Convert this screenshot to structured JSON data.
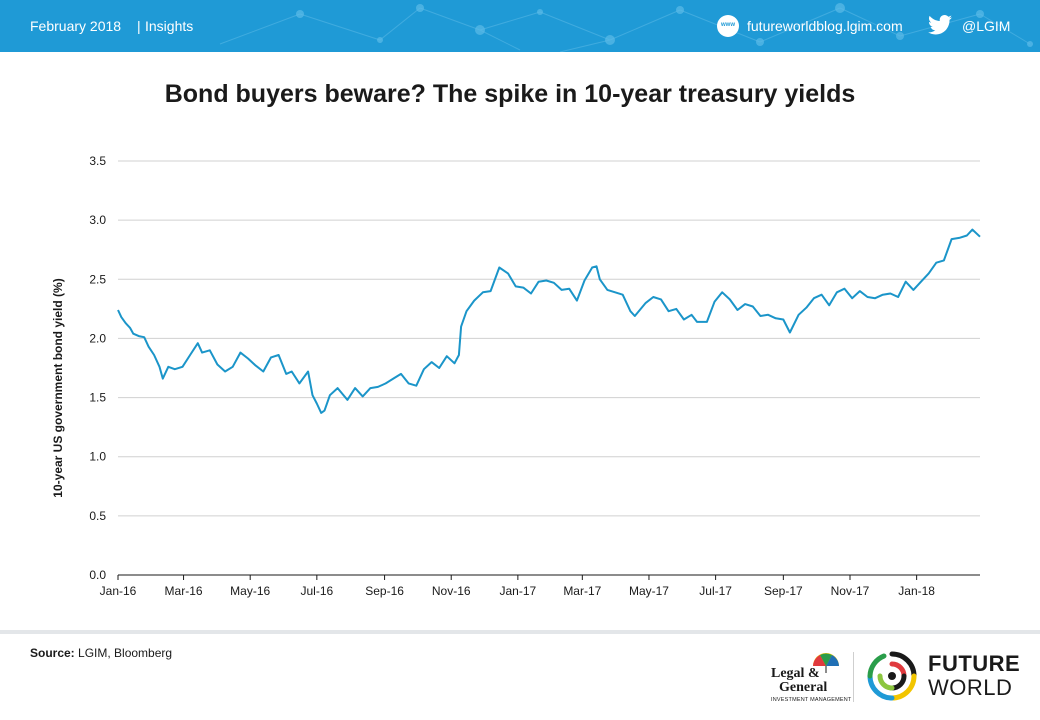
{
  "header": {
    "date": "February 2018",
    "separator": "|",
    "section": "Insights",
    "website": "futureworldblog.lgim.com",
    "website_icon_text": "www",
    "twitter_handle": "@LGIM",
    "background_color": "#1f9ad6",
    "icons": [
      "web-icon",
      "twitter-icon"
    ]
  },
  "chart_data": {
    "type": "line",
    "title": "Bond buyers beware? The spike in 10-year treasury yields",
    "ylabel": "10-year US government bond yield (%)",
    "xlabel": "",
    "ylim": [
      0,
      3.5
    ],
    "y_ticks": [
      "0.0",
      "0.5",
      "1.0",
      "1.5",
      "2.0",
      "2.5",
      "3.0",
      "3.5"
    ],
    "x_ticks": [
      "Jan-16",
      "Mar-16",
      "May-16",
      "Jul-16",
      "Sep-16",
      "Nov-16",
      "Jan-17",
      "Mar-17",
      "May-17",
      "Jul-17",
      "Sep-17",
      "Nov-17",
      "Jan-18"
    ],
    "x_range": [
      "2016-01-01",
      "2018-02-28"
    ],
    "grid": "horizontal",
    "legend": "none",
    "line_color": "#1b95c9",
    "series": [
      {
        "x": [
          "2016-01-01",
          "2016-01-04",
          "2016-01-08",
          "2016-01-12",
          "2016-01-15",
          "2016-01-20",
          "2016-01-25",
          "2016-01-29",
          "2016-02-03",
          "2016-02-08",
          "2016-02-11",
          "2016-02-16",
          "2016-02-22",
          "2016-02-29",
          "2016-03-07",
          "2016-03-14",
          "2016-03-18",
          "2016-03-25",
          "2016-04-01",
          "2016-04-08",
          "2016-04-15",
          "2016-04-22",
          "2016-04-29",
          "2016-05-06",
          "2016-05-13",
          "2016-05-20",
          "2016-05-27",
          "2016-06-03",
          "2016-06-08",
          "2016-06-15",
          "2016-06-23",
          "2016-06-27",
          "2016-07-01",
          "2016-07-05",
          "2016-07-08",
          "2016-07-13",
          "2016-07-20",
          "2016-07-29",
          "2016-08-05",
          "2016-08-12",
          "2016-08-19",
          "2016-08-26",
          "2016-09-02",
          "2016-09-09",
          "2016-09-16",
          "2016-09-23",
          "2016-09-30",
          "2016-10-07",
          "2016-10-14",
          "2016-10-21",
          "2016-10-28",
          "2016-11-04",
          "2016-11-08",
          "2016-11-10",
          "2016-11-15",
          "2016-11-22",
          "2016-11-30",
          "2016-12-07",
          "2016-12-15",
          "2016-12-23",
          "2016-12-30",
          "2017-01-06",
          "2017-01-13",
          "2017-01-20",
          "2017-01-27",
          "2017-02-03",
          "2017-02-10",
          "2017-02-17",
          "2017-02-24",
          "2017-03-03",
          "2017-03-10",
          "2017-03-14",
          "2017-03-17",
          "2017-03-24",
          "2017-03-31",
          "2017-04-07",
          "2017-04-14",
          "2017-04-18",
          "2017-04-28",
          "2017-05-05",
          "2017-05-12",
          "2017-05-19",
          "2017-05-26",
          "2017-06-02",
          "2017-06-09",
          "2017-06-14",
          "2017-06-23",
          "2017-06-30",
          "2017-07-07",
          "2017-07-14",
          "2017-07-21",
          "2017-07-28",
          "2017-08-04",
          "2017-08-11",
          "2017-08-18",
          "2017-08-25",
          "2017-09-01",
          "2017-09-07",
          "2017-09-15",
          "2017-09-22",
          "2017-09-29",
          "2017-10-06",
          "2017-10-13",
          "2017-10-20",
          "2017-10-27",
          "2017-11-03",
          "2017-11-10",
          "2017-11-17",
          "2017-11-24",
          "2017-12-01",
          "2017-12-08",
          "2017-12-15",
          "2017-12-22",
          "2017-12-29",
          "2018-01-05",
          "2018-01-12",
          "2018-01-19",
          "2018-01-26",
          "2018-02-02",
          "2018-02-09",
          "2018-02-16",
          "2018-02-21",
          "2018-02-28"
        ],
        "y": [
          2.24,
          2.18,
          2.13,
          2.09,
          2.04,
          2.02,
          2.01,
          1.93,
          1.86,
          1.76,
          1.66,
          1.76,
          1.74,
          1.76,
          1.86,
          1.96,
          1.88,
          1.9,
          1.78,
          1.72,
          1.76,
          1.88,
          1.83,
          1.77,
          1.72,
          1.84,
          1.86,
          1.7,
          1.72,
          1.62,
          1.72,
          1.52,
          1.45,
          1.37,
          1.39,
          1.52,
          1.58,
          1.48,
          1.58,
          1.51,
          1.58,
          1.59,
          1.62,
          1.66,
          1.7,
          1.62,
          1.6,
          1.74,
          1.8,
          1.75,
          1.85,
          1.79,
          1.86,
          2.1,
          2.23,
          2.32,
          2.39,
          2.4,
          2.6,
          2.55,
          2.44,
          2.43,
          2.38,
          2.48,
          2.49,
          2.47,
          2.41,
          2.42,
          2.32,
          2.49,
          2.6,
          2.61,
          2.5,
          2.41,
          2.39,
          2.37,
          2.23,
          2.19,
          2.3,
          2.35,
          2.33,
          2.23,
          2.25,
          2.16,
          2.2,
          2.14,
          2.14,
          2.31,
          2.39,
          2.33,
          2.24,
          2.29,
          2.27,
          2.19,
          2.2,
          2.17,
          2.16,
          2.05,
          2.2,
          2.26,
          2.34,
          2.37,
          2.28,
          2.39,
          2.42,
          2.34,
          2.4,
          2.35,
          2.34,
          2.37,
          2.38,
          2.35,
          2.48,
          2.41,
          2.48,
          2.55,
          2.64,
          2.66,
          2.84,
          2.85,
          2.87,
          2.92,
          2.86
        ]
      }
    ]
  },
  "footer": {
    "source_label": "Source:",
    "source_text": "LGIM, Bloomberg",
    "lg_logo": {
      "line1": "Legal &",
      "line2": "General",
      "sub": "INVESTMENT MANAGEMENT"
    },
    "fw_logo": {
      "line1": "FUTURE",
      "line2": "WORLD"
    }
  }
}
